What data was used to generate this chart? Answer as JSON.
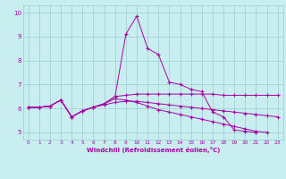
{
  "xlabel": "Windchill (Refroidissement éolien,°C)",
  "background_color": "#c8eef0",
  "line_color": "#aa00aa",
  "grid_color": "#99cccc",
  "x_values": [
    0,
    1,
    2,
    3,
    4,
    5,
    6,
    7,
    8,
    9,
    10,
    11,
    12,
    13,
    14,
    15,
    16,
    17,
    18,
    19,
    20,
    21,
    22,
    23
  ],
  "series": [
    [
      6.05,
      6.05,
      6.1,
      6.35,
      5.65,
      5.9,
      6.05,
      6.2,
      6.5,
      9.1,
      9.85,
      8.5,
      8.25,
      7.1,
      7.0,
      6.8,
      6.7,
      5.85,
      5.65,
      5.1,
      5.05,
      5.0,
      null,
      null
    ],
    [
      6.05,
      6.05,
      6.1,
      6.35,
      5.65,
      5.9,
      6.05,
      6.2,
      6.5,
      6.55,
      6.6,
      6.6,
      6.6,
      6.6,
      6.6,
      6.6,
      6.6,
      6.6,
      6.55,
      6.55,
      6.55,
      6.55,
      6.55,
      6.55
    ],
    [
      6.05,
      6.05,
      6.1,
      6.35,
      5.65,
      5.9,
      6.05,
      6.15,
      6.25,
      6.3,
      6.3,
      6.25,
      6.2,
      6.15,
      6.1,
      6.05,
      6.0,
      5.95,
      5.9,
      5.85,
      5.8,
      5.75,
      5.7,
      5.65
    ],
    [
      6.05,
      6.05,
      6.1,
      6.35,
      5.65,
      5.9,
      6.05,
      6.2,
      6.4,
      6.35,
      6.25,
      6.1,
      5.95,
      5.85,
      5.75,
      5.65,
      5.55,
      5.45,
      5.35,
      5.25,
      5.15,
      5.05,
      5.0,
      null
    ]
  ],
  "ylim": [
    4.7,
    10.3
  ],
  "xlim": [
    -0.5,
    23.5
  ],
  "yticks": [
    5,
    6,
    7,
    8,
    9,
    10
  ],
  "xticks": [
    0,
    1,
    2,
    3,
    4,
    5,
    6,
    7,
    8,
    9,
    10,
    11,
    12,
    13,
    14,
    15,
    16,
    17,
    18,
    19,
    20,
    21,
    22,
    23
  ],
  "figsize": [
    3.2,
    2.0
  ],
  "dpi": 100
}
